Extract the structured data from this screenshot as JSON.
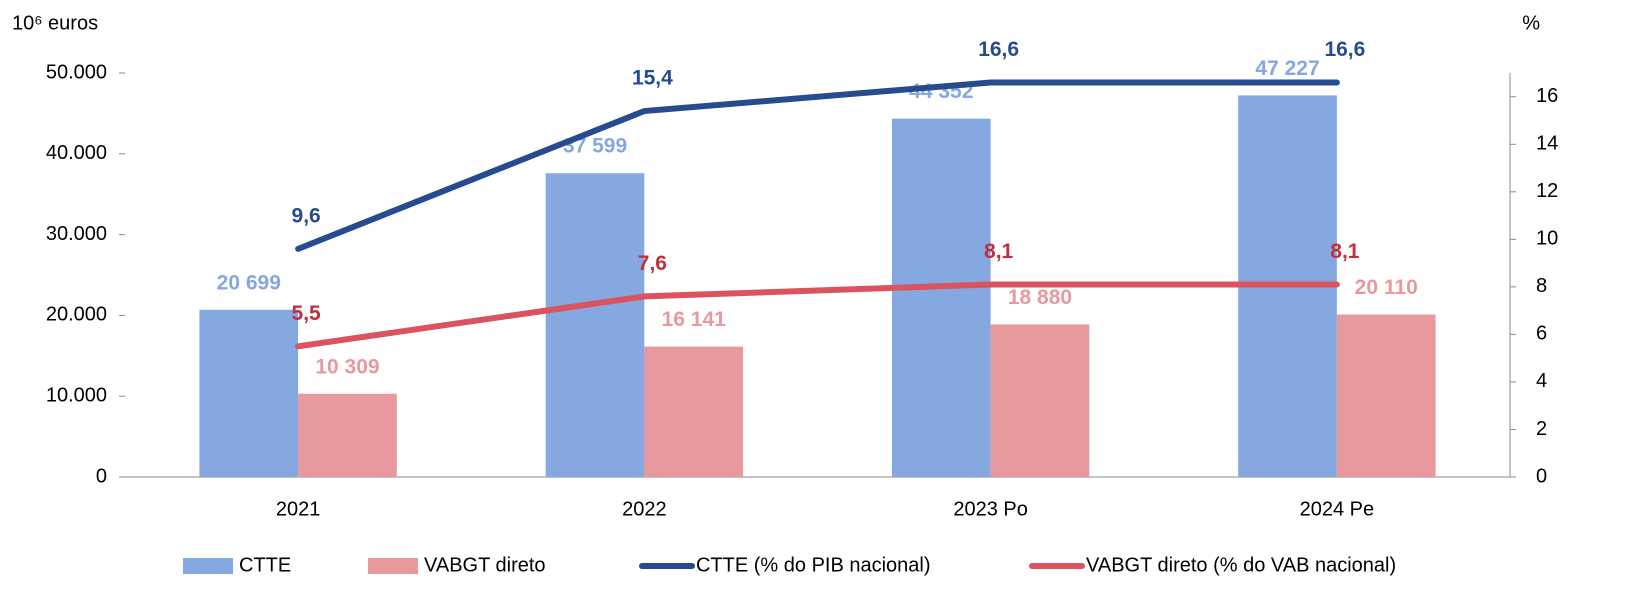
{
  "chart_data": {
    "type": "bar",
    "y_label": "10⁶ euros",
    "y2_label": "%",
    "categories": [
      "2021",
      "2022",
      "2023 Po",
      "2024 Pe"
    ],
    "series": [
      {
        "name": "CTTE",
        "type": "bar",
        "color": "#86a8e0",
        "label_color": "#86a8e0",
        "values": [
          20699,
          37599,
          44352,
          47227
        ],
        "value_labels": [
          "20 699",
          "37 599",
          "44 352",
          "47 227"
        ]
      },
      {
        "name": "VABGT direto",
        "type": "bar",
        "color": "#e8999e",
        "label_color": "#e8999e",
        "values": [
          10309,
          16141,
          18880,
          20110
        ],
        "value_labels": [
          "10 309",
          "16 141",
          "18 880",
          "20 110"
        ]
      },
      {
        "name": "CTTE (% do PIB nacional)",
        "type": "line",
        "axis": "y2",
        "color": "#264b8e",
        "label_color": "#264b8e",
        "values": [
          9.6,
          15.4,
          16.6,
          16.6
        ],
        "value_labels": [
          "9,6",
          "15,4",
          "16,6",
          "16,6"
        ]
      },
      {
        "name": "VABGT direto (% do VAB nacional)",
        "type": "line",
        "axis": "y2",
        "color": "#d9545e",
        "label_color": "#c0303c",
        "values": [
          5.5,
          7.6,
          8.1,
          8.1
        ],
        "value_labels": [
          "5,5",
          "7,6",
          "8,1",
          "8,1"
        ]
      }
    ],
    "ylim": [
      0,
      50000
    ],
    "yticks": [
      0,
      {
        "value": 10000,
        "label": "10.000"
      },
      {
        "value": 20000,
        "label": "20.000"
      },
      {
        "value": 30000,
        "label": "30.000"
      },
      {
        "value": 40000,
        "label": "40.000"
      },
      {
        "value": 50000,
        "label": "50.000"
      }
    ],
    "y2lim": [
      0,
      17
    ],
    "y2ticks": [
      0,
      2,
      4,
      6,
      8,
      10,
      12,
      14,
      16
    ],
    "legend": "bottom"
  }
}
